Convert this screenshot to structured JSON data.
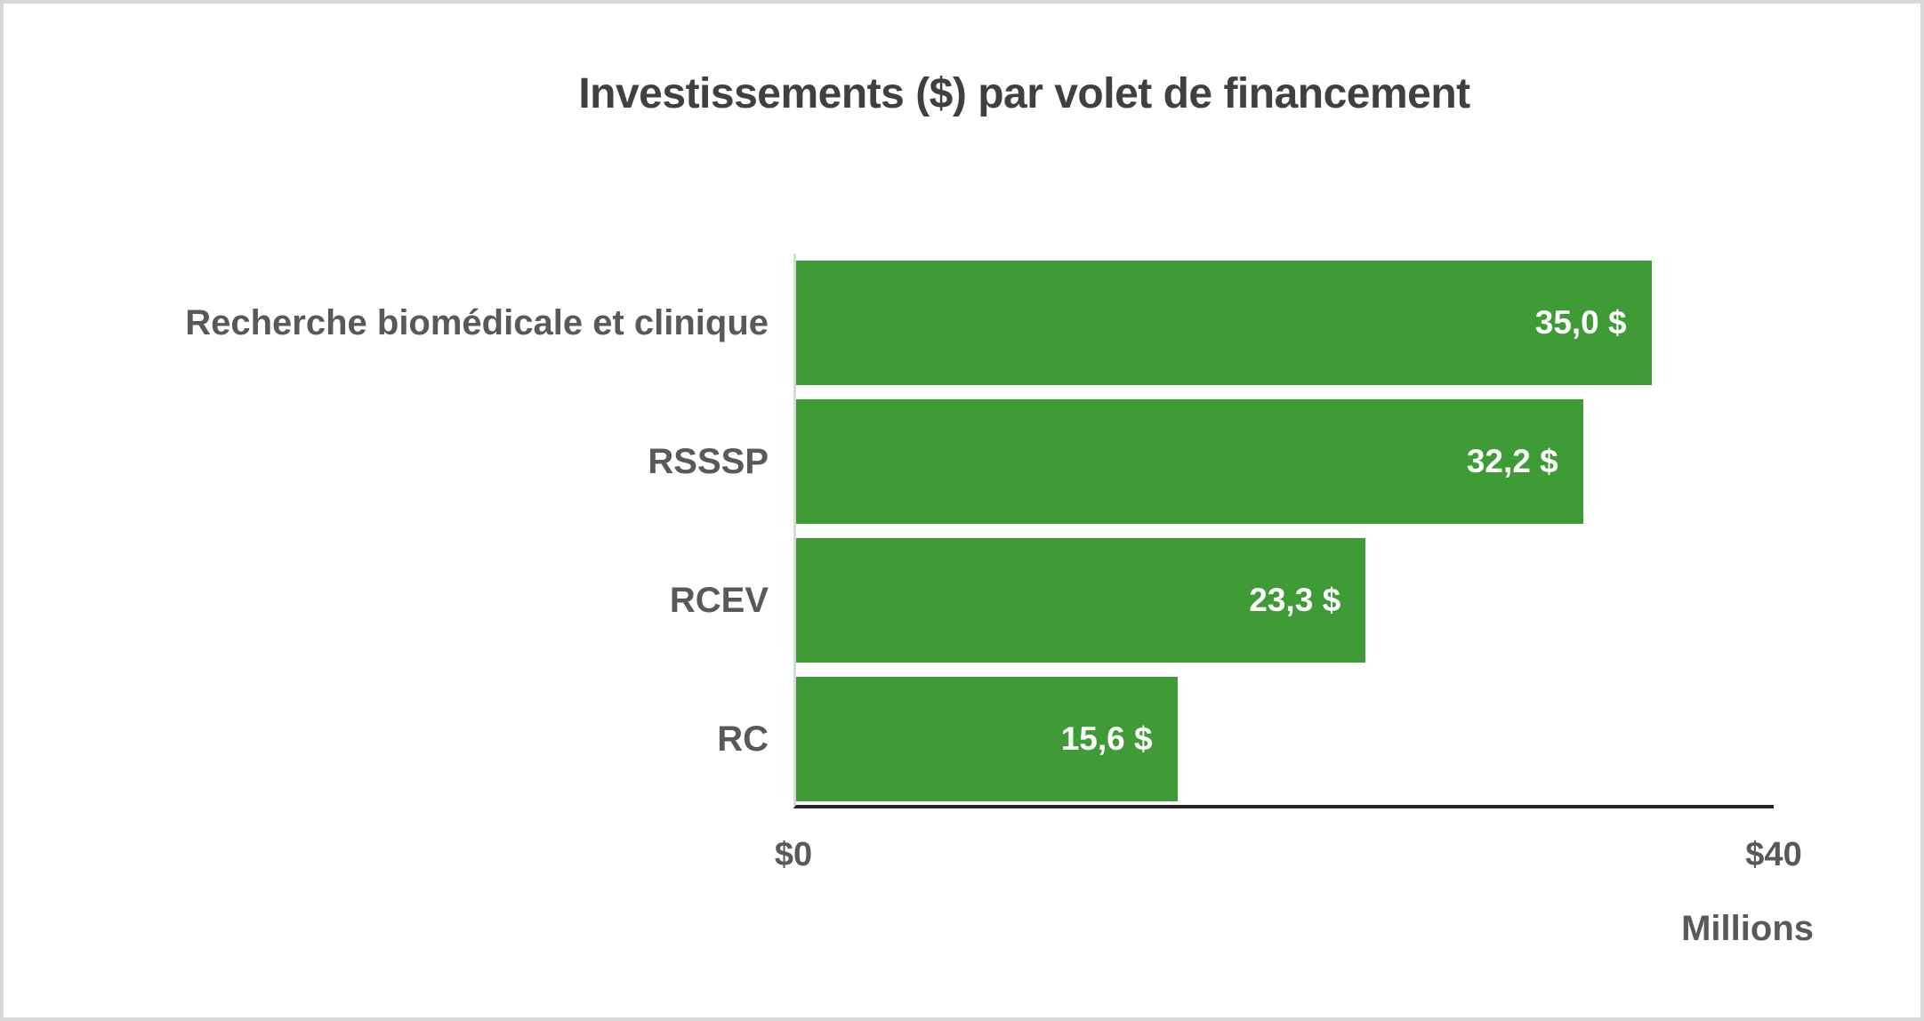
{
  "chart_data": {
    "type": "bar",
    "orientation": "horizontal",
    "title": "Investissements ($) par volet de financement",
    "categories": [
      "Recherche biomédicale et clinique",
      "RSSSP",
      "RCEV",
      "RC"
    ],
    "values": [
      35.0,
      32.2,
      23.3,
      15.6
    ],
    "value_labels": [
      "35,0 $",
      "32,2 $",
      "23,3 $",
      "15,6 $"
    ],
    "xlabel": "Millions",
    "xlim": [
      0,
      40
    ],
    "x_tick_labels": [
      "$0",
      "$40"
    ],
    "gridlines": false,
    "legend": false,
    "colors": {
      "bar_fill": "#3e9b35",
      "value_label_text": "#ffffff",
      "category_label_text": "#595959",
      "title_text": "#404040",
      "axis_line": "#262626",
      "baseline_line": "#d9d9d9",
      "canvas_border": "#d8d8d8",
      "background": "#ffffff"
    }
  }
}
